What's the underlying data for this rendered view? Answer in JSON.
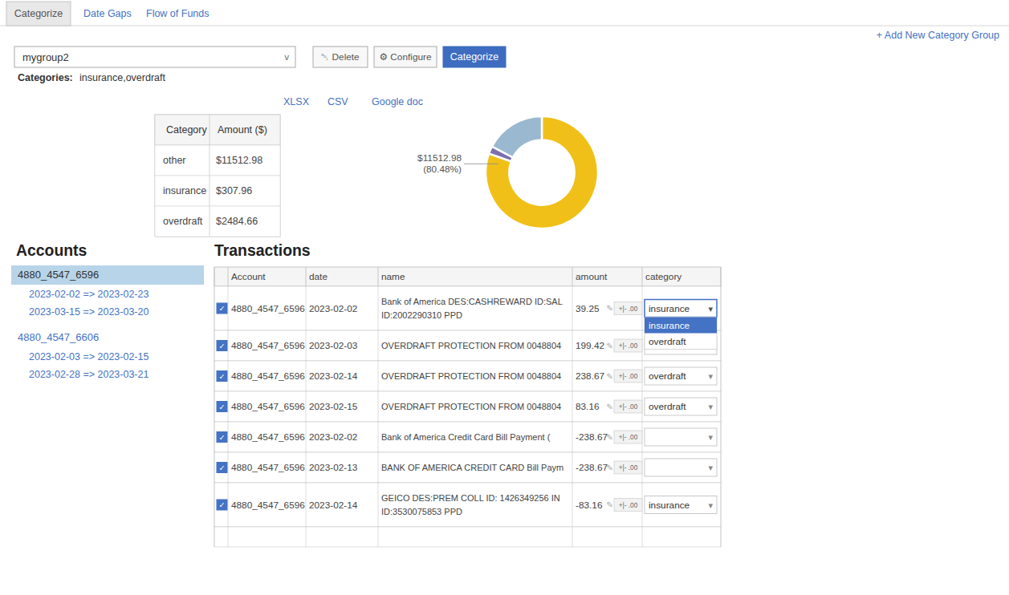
{
  "chart_data": {
    "type": "donut",
    "categories": [
      "other",
      "insurance",
      "overdraft"
    ],
    "values": [
      11512.98,
      307.96,
      2484.66
    ],
    "colors": [
      "#f0c019",
      "#7b6fb0",
      "#9ab8d0"
    ],
    "annotations": [
      "$11512.98\n(80.48%)"
    ]
  },
  "page": {
    "tabs": [
      "Categorize",
      "Date Gaps",
      "Flow of Funds"
    ],
    "active_tab": 0,
    "add_new": "+ Add New Category Group",
    "group": "mygroup2",
    "buttons": [
      "␀ Delete",
      "⚙ Configure",
      "Categorize"
    ],
    "categories_label": "Categories:",
    "categories_value": "insurance,overdraft",
    "exports": [
      "XLSX",
      "CSV",
      "Google doc"
    ],
    "category_table": {
      "headers": [
        "Category",
        "Amount ($)"
      ],
      "amounts": [
        "$11512.98",
        "$307.96",
        "$2484.66"
      ]
    },
    "accounts_title": "Accounts",
    "accounts": [
      {
        "id": "4880_4547_6596",
        "selected": true,
        "ranges": [
          "2023-02-02 => 2023-02-23",
          "2023-03-15 => 2023-03-20"
        ]
      },
      {
        "id": "4880_4547_6606",
        "selected": false,
        "ranges": [
          "2023-02-03 => 2023-02-15",
          "2023-02-28 => 2023-03-21"
        ]
      }
    ],
    "transactions_title": "Transactions",
    "tx_headers": [
      "Account",
      "date",
      "name",
      "amount",
      "category"
    ],
    "transactions": [
      {
        "account": "4880_4547_6596",
        "date": "2023-02-02",
        "name": "Bank of America DES:CASHREWARD ID:SAL",
        "name2": "ID:2002290310 PPD",
        "amount": "39.25",
        "category": "insurance",
        "checked": true,
        "open_dropdown": true
      },
      {
        "account": "4880_4547_6596",
        "date": "2023-02-03",
        "name": "OVERDRAFT PROTECTION FROM 0048804",
        "amount": "199.42",
        "checked": true,
        "open_dropdown": false
      },
      {
        "account": "4880_4547_6596",
        "date": "2023-02-14",
        "name": "OVERDRAFT PROTECTION FROM 0048804",
        "amount": "238.67",
        "category": "overdraft",
        "checked": true,
        "open_dropdown": false
      },
      {
        "account": "4880_4547_6596",
        "date": "2023-02-15",
        "name": "OVERDRAFT PROTECTION FROM 0048804",
        "amount": "83.16",
        "category": "overdraft",
        "checked": true,
        "open_dropdown": false
      },
      {
        "account": "4880_4547_6596",
        "date": "2023-02-02",
        "name": "Bank of America Credit Card Bill Payment (",
        "amount": "-238.67",
        "checked": true,
        "open_dropdown": false
      },
      {
        "account": "4880_4547_6596",
        "date": "2023-02-13",
        "name": "BANK OF AMERICA CREDIT CARD Bill Paym",
        "amount": "-238.67",
        "checked": true,
        "open_dropdown": false
      },
      {
        "account": "4880_4547_6596",
        "date": "2023-02-14",
        "name": "GEICO DES:PREM COLL ID: 1426349256 IN",
        "name2": "ID:3530075853 PPD",
        "amount": "-83.16",
        "category": "insurance",
        "checked": true,
        "open_dropdown": false
      }
    ],
    "dropdown_options": [
      "insurance",
      "overdraft"
    ],
    "amount_adjust": "+|- .00",
    "icons": {
      "chevron": "v",
      "check": "✓",
      "edit": "✎",
      "caret": "▾"
    }
  }
}
